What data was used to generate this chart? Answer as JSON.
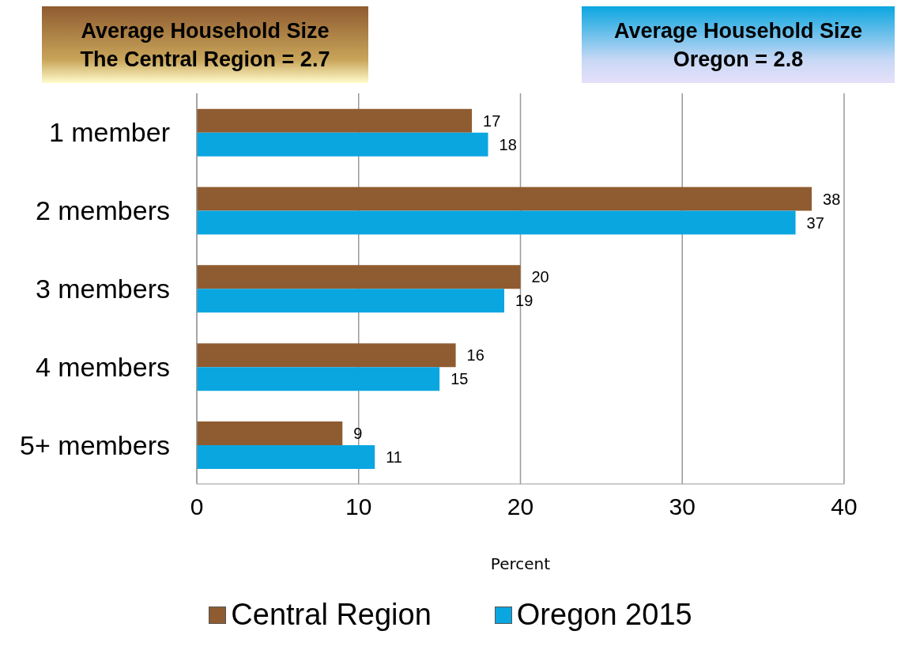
{
  "chart_data": {
    "type": "bar",
    "orientation": "horizontal",
    "annotations": [
      "Average Household Size\nThe Central Region = 2.7",
      "Average Household Size\nOregon = 2.8"
    ],
    "categories": [
      "1 member",
      "2 members",
      "3 members",
      "4 members",
      "5+ members"
    ],
    "series": [
      {
        "name": "Central Region",
        "color": "#8f5b30",
        "values": [
          17,
          38,
          20,
          16,
          9
        ]
      },
      {
        "name": "Oregon 2015",
        "color": "#0aa6e0",
        "values": [
          18,
          37,
          19,
          15,
          11
        ]
      }
    ],
    "xlim": [
      0,
      40
    ],
    "xticks": [
      0,
      10,
      20,
      30,
      40
    ],
    "xlabel": "Percent",
    "grid": "x",
    "data_labels": true,
    "legend": "bottom"
  }
}
